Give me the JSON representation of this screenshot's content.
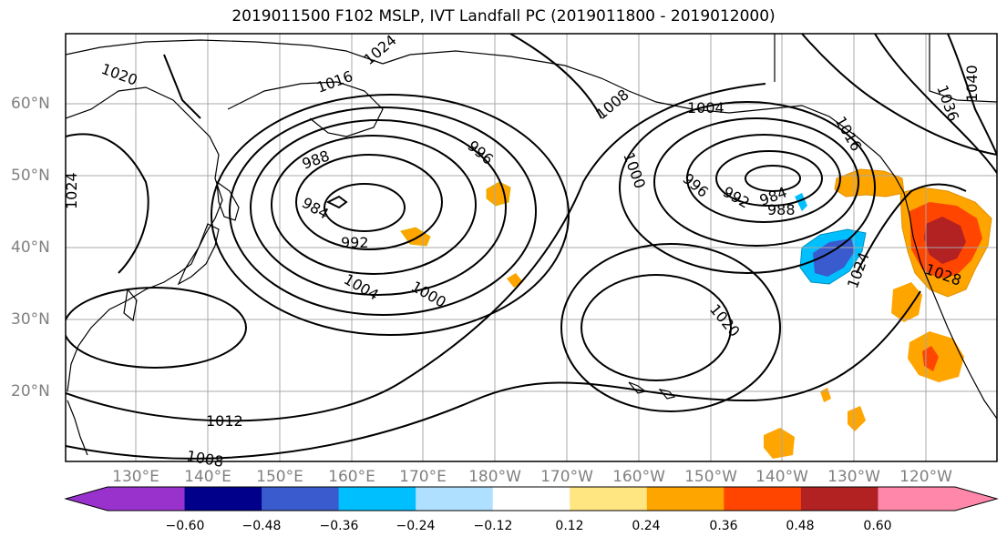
{
  "title": "2019011500 F102 MSLP, IVT Landfall PC (2019011800 - 2019012000)",
  "lat_labels": [
    "60°N",
    "50°N",
    "40°N",
    "30°N",
    "20°N"
  ],
  "lon_labels": [
    "130°E",
    "140°E",
    "150°E",
    "160°E",
    "170°E",
    "180°W",
    "170°W",
    "160°W",
    "150°W",
    "140°W",
    "130°W",
    "120°W"
  ],
  "contour_labels": [
    "1020",
    "1024",
    "1016",
    "1008",
    "1004",
    "988",
    "996",
    "984",
    "992",
    "1004",
    "1000",
    "1000",
    "996",
    "992",
    "984",
    "988",
    "1024",
    "1028",
    "1020",
    "1012",
    "1008",
    "1036",
    "1040",
    "1024",
    "1016"
  ],
  "colorbar": {
    "ticks": [
      "−0.60",
      "−0.48",
      "−0.36",
      "−0.24",
      "−0.12",
      "0.12",
      "0.24",
      "0.36",
      "0.48",
      "0.60"
    ],
    "colors": [
      "#9932cc",
      "#00008b",
      "#3a5bcd",
      "#00bfff",
      "#b0e0ff",
      "#ffffff",
      "#ffe680",
      "#ffa500",
      "#ff4500",
      "#b22222",
      "#ff88aa",
      "#ff88aa"
    ]
  },
  "map_colors": {
    "positive_light": "#ffe680",
    "positive_mid": "#ffa500",
    "positive_strong": "#ff4500",
    "positive_max": "#b22222",
    "negative_light": "#00bfff",
    "negative_mid": "#3a5bcd"
  }
}
